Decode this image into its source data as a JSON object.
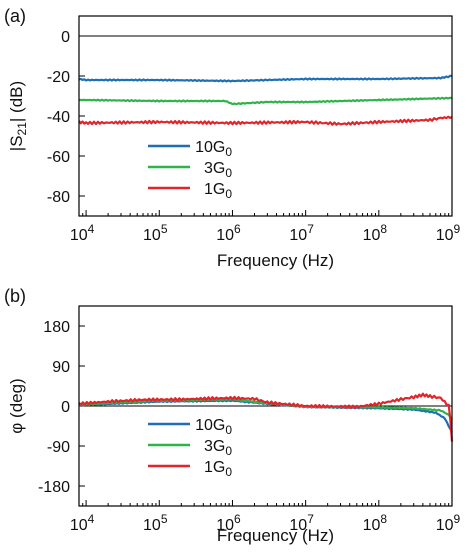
{
  "chart_data": [
    {
      "type": "line",
      "panel_label": "(a)",
      "xlabel": "Frequency (Hz)",
      "ylabel": "|S21| (dB)",
      "xscale": "log",
      "xlim": [
        8000,
        1000000000
      ],
      "ylim": [
        -90,
        10
      ],
      "xticks": [
        {
          "value": 10000,
          "base": "10",
          "exp": "4"
        },
        {
          "value": 100000,
          "base": "10",
          "exp": "5"
        },
        {
          "value": 1000000,
          "base": "10",
          "exp": "6"
        },
        {
          "value": 10000000,
          "base": "10",
          "exp": "7"
        },
        {
          "value": 100000000,
          "base": "10",
          "exp": "8"
        },
        {
          "value": 1000000000,
          "base": "10",
          "exp": "9"
        }
      ],
      "yticks": [
        {
          "value": 0,
          "label": "0"
        },
        {
          "value": -20,
          "label": "-20"
        },
        {
          "value": -40,
          "label": "-40"
        },
        {
          "value": -60,
          "label": "-60"
        },
        {
          "value": -80,
          "label": "-80"
        }
      ],
      "reference_line": 0,
      "legend_position": "lower-left",
      "series": [
        {
          "name": "10G0",
          "color": "#1f6fb4",
          "x": [
            8000,
            10000,
            100000,
            1000000,
            3000000,
            10000000,
            100000000,
            700000000,
            1000000000
          ],
          "y": [
            -21.5,
            -22,
            -22,
            -22.5,
            -22,
            -21.5,
            -21.5,
            -21,
            -20
          ]
        },
        {
          "name": "3G0",
          "color": "#2fb34a",
          "x": [
            8000,
            10000,
            100000,
            800000,
            1000000,
            3000000,
            10000000,
            100000000,
            1000000000
          ],
          "y": [
            -32,
            -32,
            -32.5,
            -32.5,
            -34,
            -33,
            -33,
            -32,
            -31
          ]
        },
        {
          "name": "1G0",
          "color": "#e0262a",
          "x": [
            8000,
            10000,
            100000,
            1000000,
            10000000,
            30000000,
            100000000,
            500000000,
            700000000,
            1000000000
          ],
          "y": [
            -43,
            -43.5,
            -43,
            -43.5,
            -43,
            -44,
            -43,
            -42,
            -41,
            -40.5
          ]
        }
      ]
    },
    {
      "type": "line",
      "panel_label": "(b)",
      "xlabel": "Frequency (Hz)",
      "ylabel": "φ (deg)",
      "xscale": "log",
      "xlim": [
        8000,
        1000000000
      ],
      "ylim": [
        -225,
        225
      ],
      "xticks": [
        {
          "value": 10000,
          "base": "10",
          "exp": "4"
        },
        {
          "value": 100000,
          "base": "10",
          "exp": "5"
        },
        {
          "value": 1000000,
          "base": "10",
          "exp": "6"
        },
        {
          "value": 10000000,
          "base": "10",
          "exp": "7"
        },
        {
          "value": 100000000,
          "base": "10",
          "exp": "8"
        },
        {
          "value": 1000000000,
          "base": "10",
          "exp": "9"
        }
      ],
      "yticks": [
        {
          "value": 180,
          "label": "180"
        },
        {
          "value": 90,
          "label": "90"
        },
        {
          "value": 0,
          "label": "0"
        },
        {
          "value": -90,
          "label": "-90"
        },
        {
          "value": -180,
          "label": "-180"
        }
      ],
      "reference_line": 0,
      "legend_position": "lower-left",
      "series": [
        {
          "name": "10G0",
          "color": "#1f6fb4",
          "x": [
            8000,
            30000,
            100000,
            1000000,
            3000000,
            10000000,
            100000000,
            300000000,
            600000000,
            800000000,
            900000000,
            1000000000
          ],
          "y": [
            2,
            6,
            10,
            12,
            5,
            -2,
            -5,
            -8,
            -15,
            -28,
            -45,
            -60
          ]
        },
        {
          "name": "3G0",
          "color": "#2fb34a",
          "x": [
            8000,
            30000,
            100000,
            1000000,
            3000000,
            10000000,
            100000000,
            300000000,
            700000000,
            900000000,
            1000000000
          ],
          "y": [
            3,
            8,
            12,
            15,
            6,
            -2,
            -3,
            -5,
            -10,
            -20,
            -30
          ]
        },
        {
          "name": "1G0",
          "color": "#e0262a",
          "x": [
            8000,
            20000,
            60000,
            200000,
            500000,
            1000000,
            2000000,
            3000000,
            10000000,
            50000000,
            100000000,
            200000000,
            300000000,
            400000000,
            500000000,
            700000000,
            900000000,
            950000000,
            1000000000
          ],
          "y": [
            5,
            10,
            14,
            15,
            17,
            18,
            16,
            8,
            0,
            -2,
            5,
            15,
            20,
            25,
            22,
            18,
            0,
            -30,
            -80
          ]
        }
      ]
    }
  ]
}
